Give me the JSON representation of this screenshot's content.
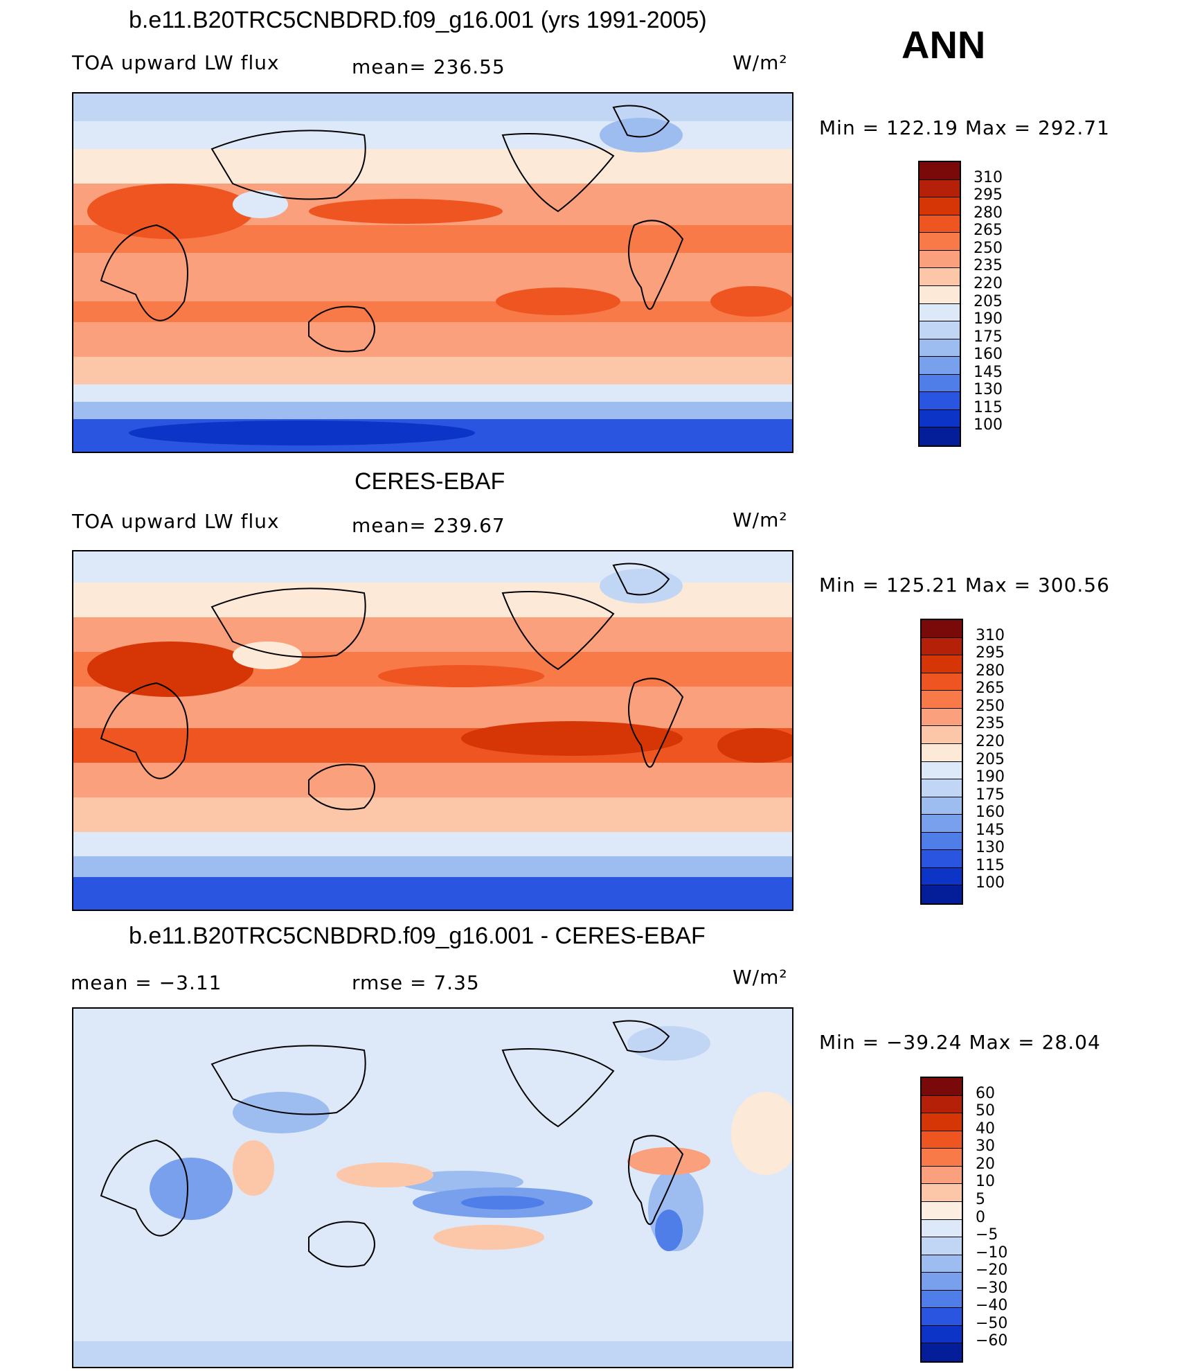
{
  "season": "ANN",
  "panels": [
    {
      "title": "b.e11.B20TRC5CNBDRD.f09_g16.001 (yrs 1991-2005)",
      "left_label": "TOA upward LW flux",
      "mid_label": "mean=  236.55",
      "units": "W/m²",
      "minmax": "Min  =  122.19  Max  =  292.71",
      "colorbar_labels": [
        "310",
        "295",
        "280",
        "265",
        "250",
        "235",
        "220",
        "205",
        "190",
        "175",
        "160",
        "145",
        "130",
        "115",
        "100"
      ]
    },
    {
      "title": "CERES-EBAF",
      "left_label": "TOA upward LW flux",
      "mid_label": "mean=  239.67",
      "units": "W/m²",
      "minmax": "Min  =  125.21  Max  =  300.56",
      "colorbar_labels": [
        "310",
        "295",
        "280",
        "265",
        "250",
        "235",
        "220",
        "205",
        "190",
        "175",
        "160",
        "145",
        "130",
        "115",
        "100"
      ]
    },
    {
      "title": "b.e11.B20TRC5CNBDRD.f09_g16.001 - CERES-EBAF",
      "left_label": "mean  =    −3.11",
      "mid_label": "rmse  =     7.35",
      "units": "W/m²",
      "minmax": "Min  =  −39.24  Max  =    28.04",
      "colorbar_labels": [
        "60",
        "50",
        "40",
        "30",
        "20",
        "10",
        "5",
        "0",
        "−5",
        "−10",
        "−20",
        "−30",
        "−40",
        "−50",
        "−60"
      ]
    }
  ],
  "colors": {
    "abs_scale": [
      "#7a0a0a",
      "#b42008",
      "#d63606",
      "#ee5520",
      "#f77a48",
      "#fba07c",
      "#fcc6a8",
      "#fde9d8",
      "#dde9f8",
      "#c0d6f4",
      "#9dbcf0",
      "#78a0ec",
      "#4f7ee8",
      "#2a55e0",
      "#0c35c8",
      "#041e9a",
      "#000d70"
    ],
    "diff_scale": [
      "#7a0a0a",
      "#b42008",
      "#d63606",
      "#ee5520",
      "#f77a48",
      "#fba07c",
      "#fcc6a8",
      "#fdeee2",
      "#dde9f8",
      "#c0d6f4",
      "#9dbcf0",
      "#78a0ec",
      "#4f7ee8",
      "#2a55e0",
      "#0c35c8",
      "#041e9a",
      "#000d70"
    ]
  }
}
